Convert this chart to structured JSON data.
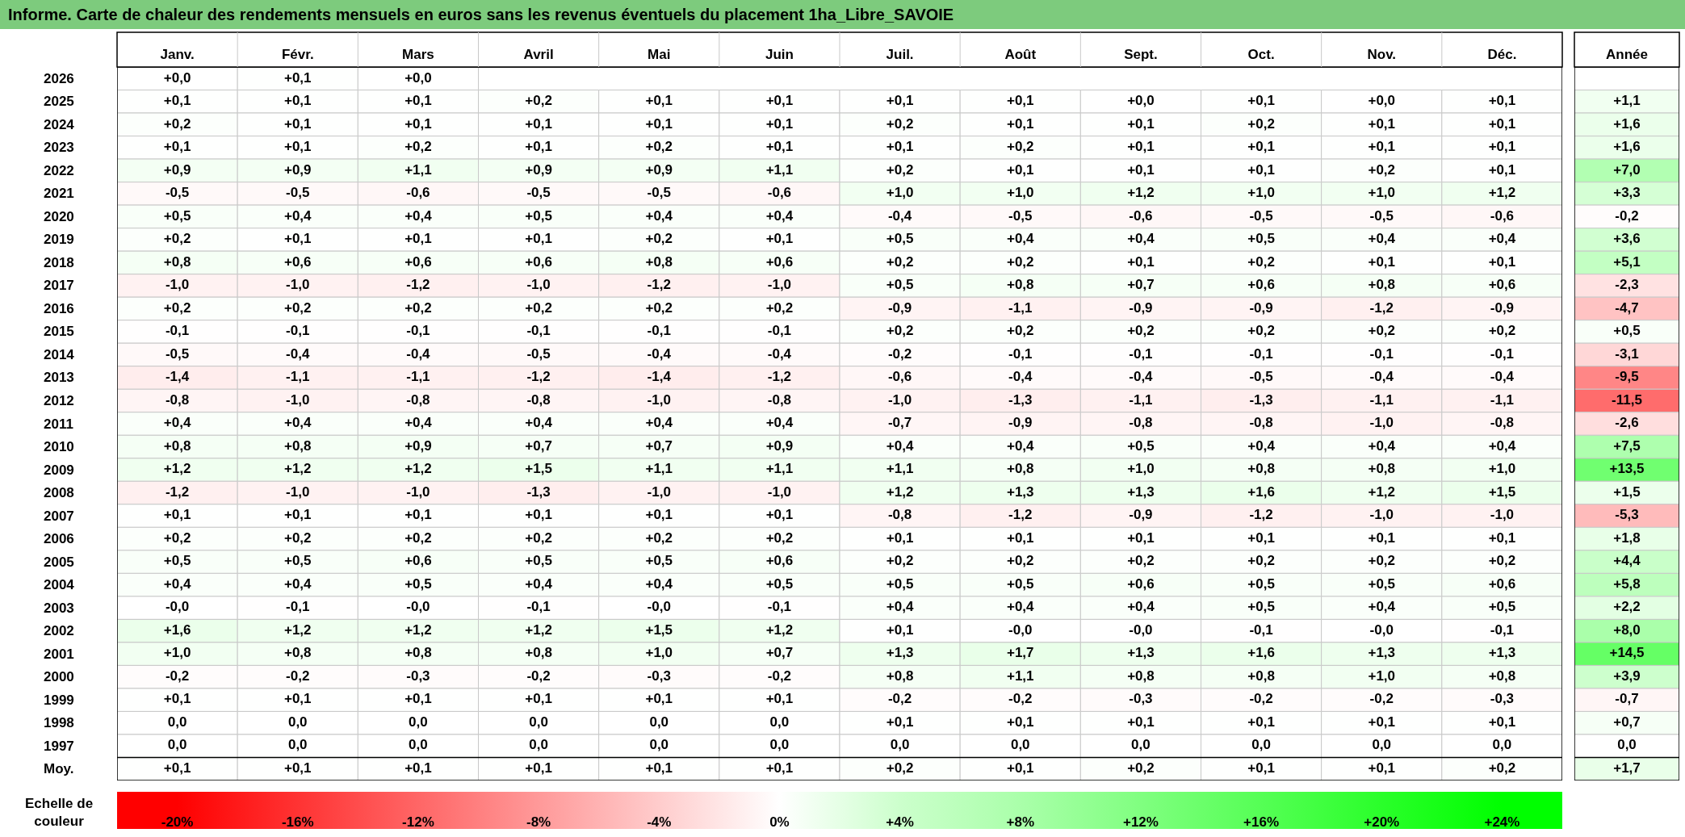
{
  "chart_data": [
    {
      "type": "heatmap",
      "title": "Informe. Carte de chaleur des rendements mensuels en euros sans les revenus éventuels du placement 1ha_Libre_SAVOIE",
      "categories": [
        "Janv.",
        "Févr.",
        "Mars",
        "Avril",
        "Mai",
        "Juin",
        "Juil.",
        "Août",
        "Sept.",
        "Oct.",
        "Nov.",
        "Déc."
      ],
      "y_categories": [
        "2026",
        "2025",
        "2024",
        "2023",
        "2022",
        "2021",
        "2020",
        "2019",
        "2018",
        "2017",
        "2016",
        "2015",
        "2014",
        "2013",
        "2012",
        "2011",
        "2010",
        "2009",
        "2008",
        "2007",
        "2006",
        "2005",
        "2004",
        "2003",
        "2002",
        "2001",
        "2000",
        "1999",
        "1998",
        "1997",
        "Moy."
      ],
      "cells": [
        [
          0.0,
          0.1,
          0.0,
          null,
          null,
          null,
          null,
          null,
          null,
          null,
          null,
          null
        ],
        [
          0.1,
          0.1,
          0.1,
          0.2,
          0.1,
          0.1,
          0.1,
          0.1,
          0.0,
          0.1,
          0.0,
          0.1
        ],
        [
          0.2,
          0.1,
          0.1,
          0.1,
          0.1,
          0.1,
          0.2,
          0.1,
          0.1,
          0.2,
          0.1,
          0.1
        ],
        [
          0.1,
          0.1,
          0.2,
          0.1,
          0.2,
          0.1,
          0.1,
          0.2,
          0.1,
          0.1,
          0.1,
          0.1
        ],
        [
          0.9,
          0.9,
          1.1,
          0.9,
          0.9,
          1.1,
          0.2,
          0.1,
          0.1,
          0.1,
          0.2,
          0.1
        ],
        [
          -0.5,
          -0.5,
          -0.6,
          -0.5,
          -0.5,
          -0.6,
          1.0,
          1.0,
          1.2,
          1.0,
          1.0,
          1.2
        ],
        [
          0.5,
          0.4,
          0.4,
          0.5,
          0.4,
          0.4,
          -0.4,
          -0.5,
          -0.6,
          -0.5,
          -0.5,
          -0.6
        ],
        [
          0.2,
          0.1,
          0.1,
          0.1,
          0.2,
          0.1,
          0.5,
          0.4,
          0.4,
          0.5,
          0.4,
          0.4
        ],
        [
          0.8,
          0.6,
          0.6,
          0.6,
          0.8,
          0.6,
          0.2,
          0.2,
          0.1,
          0.2,
          0.1,
          0.1
        ],
        [
          -1.0,
          -1.0,
          -1.2,
          -1.0,
          -1.2,
          -1.0,
          0.5,
          0.8,
          0.7,
          0.6,
          0.8,
          0.6
        ],
        [
          0.2,
          0.2,
          0.2,
          0.2,
          0.2,
          0.2,
          -0.9,
          -1.1,
          -0.9,
          -0.9,
          -1.2,
          -0.9
        ],
        [
          -0.1,
          -0.1,
          -0.1,
          -0.1,
          -0.1,
          -0.1,
          0.2,
          0.2,
          0.2,
          0.2,
          0.2,
          0.2
        ],
        [
          -0.5,
          -0.4,
          -0.4,
          -0.5,
          -0.4,
          -0.4,
          -0.2,
          -0.1,
          -0.1,
          -0.1,
          -0.1,
          -0.1
        ],
        [
          -1.4,
          -1.1,
          -1.1,
          -1.2,
          -1.4,
          -1.2,
          -0.6,
          -0.4,
          -0.4,
          -0.5,
          -0.4,
          -0.4
        ],
        [
          -0.8,
          -1.0,
          -0.8,
          -0.8,
          -1.0,
          -0.8,
          -1.0,
          -1.3,
          -1.1,
          -1.3,
          -1.1,
          -1.1
        ],
        [
          0.4,
          0.4,
          0.4,
          0.4,
          0.4,
          0.4,
          -0.7,
          -0.9,
          -0.8,
          -0.8,
          -1.0,
          -0.8
        ],
        [
          0.8,
          0.8,
          0.9,
          0.7,
          0.7,
          0.9,
          0.4,
          0.4,
          0.5,
          0.4,
          0.4,
          0.4
        ],
        [
          1.2,
          1.2,
          1.2,
          1.5,
          1.1,
          1.1,
          1.1,
          0.8,
          1.0,
          0.8,
          0.8,
          1.0
        ],
        [
          -1.2,
          -1.0,
          -1.0,
          -1.3,
          -1.0,
          -1.0,
          1.2,
          1.3,
          1.3,
          1.6,
          1.2,
          1.5
        ],
        [
          0.1,
          0.1,
          0.1,
          0.1,
          0.1,
          0.1,
          -0.8,
          -1.2,
          -0.9,
          -1.2,
          -1.0,
          -1.0
        ],
        [
          0.2,
          0.2,
          0.2,
          0.2,
          0.2,
          0.2,
          0.1,
          0.1,
          0.1,
          0.1,
          0.1,
          0.1
        ],
        [
          0.5,
          0.5,
          0.6,
          0.5,
          0.5,
          0.6,
          0.2,
          0.2,
          0.2,
          0.2,
          0.2,
          0.2
        ],
        [
          0.4,
          0.4,
          0.5,
          0.4,
          0.4,
          0.5,
          0.5,
          0.5,
          0.6,
          0.5,
          0.5,
          0.6
        ],
        [
          -0.0,
          -0.1,
          -0.0,
          -0.1,
          -0.0,
          -0.1,
          0.4,
          0.4,
          0.4,
          0.5,
          0.4,
          0.5
        ],
        [
          1.6,
          1.2,
          1.2,
          1.2,
          1.5,
          1.2,
          0.1,
          -0.0,
          -0.0,
          -0.1,
          -0.0,
          -0.1
        ],
        [
          1.0,
          0.8,
          0.8,
          0.8,
          1.0,
          0.7,
          1.3,
          1.7,
          1.3,
          1.6,
          1.3,
          1.3
        ],
        [
          -0.2,
          -0.2,
          -0.3,
          -0.2,
          -0.3,
          -0.2,
          0.8,
          1.1,
          0.8,
          0.8,
          1.0,
          0.8
        ],
        [
          0.1,
          0.1,
          0.1,
          0.1,
          0.1,
          0.1,
          -0.2,
          -0.2,
          -0.3,
          -0.2,
          -0.2,
          -0.3
        ],
        [
          0.0,
          0.0,
          0.0,
          0.0,
          0.0,
          0.0,
          0.1,
          0.1,
          0.1,
          0.1,
          0.1,
          0.1
        ],
        [
          0.0,
          0.0,
          0.0,
          0.0,
          0.0,
          0.0,
          0.0,
          0.0,
          0.0,
          0.0,
          0.0,
          0.0
        ],
        [
          0.1,
          0.1,
          0.1,
          0.1,
          0.1,
          0.1,
          0.2,
          0.1,
          0.2,
          0.1,
          0.1,
          0.2
        ]
      ],
      "cell_labels": [
        [
          "+0,0",
          "+0,1",
          "+0,0",
          null,
          null,
          null,
          null,
          null,
          null,
          null,
          null,
          null
        ],
        [
          "+0,1",
          "+0,1",
          "+0,1",
          "+0,2",
          "+0,1",
          "+0,1",
          "+0,1",
          "+0,1",
          "+0,0",
          "+0,1",
          "+0,0",
          "+0,1"
        ],
        [
          "+0,2",
          "+0,1",
          "+0,1",
          "+0,1",
          "+0,1",
          "+0,1",
          "+0,2",
          "+0,1",
          "+0,1",
          "+0,2",
          "+0,1",
          "+0,1"
        ],
        [
          "+0,1",
          "+0,1",
          "+0,2",
          "+0,1",
          "+0,2",
          "+0,1",
          "+0,1",
          "+0,2",
          "+0,1",
          "+0,1",
          "+0,1",
          "+0,1"
        ],
        [
          "+0,9",
          "+0,9",
          "+1,1",
          "+0,9",
          "+0,9",
          "+1,1",
          "+0,2",
          "+0,1",
          "+0,1",
          "+0,1",
          "+0,2",
          "+0,1"
        ],
        [
          "-0,5",
          "-0,5",
          "-0,6",
          "-0,5",
          "-0,5",
          "-0,6",
          "+1,0",
          "+1,0",
          "+1,2",
          "+1,0",
          "+1,0",
          "+1,2"
        ],
        [
          "+0,5",
          "+0,4",
          "+0,4",
          "+0,5",
          "+0,4",
          "+0,4",
          "-0,4",
          "-0,5",
          "-0,6",
          "-0,5",
          "-0,5",
          "-0,6"
        ],
        [
          "+0,2",
          "+0,1",
          "+0,1",
          "+0,1",
          "+0,2",
          "+0,1",
          "+0,5",
          "+0,4",
          "+0,4",
          "+0,5",
          "+0,4",
          "+0,4"
        ],
        [
          "+0,8",
          "+0,6",
          "+0,6",
          "+0,6",
          "+0,8",
          "+0,6",
          "+0,2",
          "+0,2",
          "+0,1",
          "+0,2",
          "+0,1",
          "+0,1"
        ],
        [
          "-1,0",
          "-1,0",
          "-1,2",
          "-1,0",
          "-1,2",
          "-1,0",
          "+0,5",
          "+0,8",
          "+0,7",
          "+0,6",
          "+0,8",
          "+0,6"
        ],
        [
          "+0,2",
          "+0,2",
          "+0,2",
          "+0,2",
          "+0,2",
          "+0,2",
          "-0,9",
          "-1,1",
          "-0,9",
          "-0,9",
          "-1,2",
          "-0,9"
        ],
        [
          "-0,1",
          "-0,1",
          "-0,1",
          "-0,1",
          "-0,1",
          "-0,1",
          "+0,2",
          "+0,2",
          "+0,2",
          "+0,2",
          "+0,2",
          "+0,2"
        ],
        [
          "-0,5",
          "-0,4",
          "-0,4",
          "-0,5",
          "-0,4",
          "-0,4",
          "-0,2",
          "-0,1",
          "-0,1",
          "-0,1",
          "-0,1",
          "-0,1"
        ],
        [
          "-1,4",
          "-1,1",
          "-1,1",
          "-1,2",
          "-1,4",
          "-1,2",
          "-0,6",
          "-0,4",
          "-0,4",
          "-0,5",
          "-0,4",
          "-0,4"
        ],
        [
          "-0,8",
          "-1,0",
          "-0,8",
          "-0,8",
          "-1,0",
          "-0,8",
          "-1,0",
          "-1,3",
          "-1,1",
          "-1,3",
          "-1,1",
          "-1,1"
        ],
        [
          "+0,4",
          "+0,4",
          "+0,4",
          "+0,4",
          "+0,4",
          "+0,4",
          "-0,7",
          "-0,9",
          "-0,8",
          "-0,8",
          "-1,0",
          "-0,8"
        ],
        [
          "+0,8",
          "+0,8",
          "+0,9",
          "+0,7",
          "+0,7",
          "+0,9",
          "+0,4",
          "+0,4",
          "+0,5",
          "+0,4",
          "+0,4",
          "+0,4"
        ],
        [
          "+1,2",
          "+1,2",
          "+1,2",
          "+1,5",
          "+1,1",
          "+1,1",
          "+1,1",
          "+0,8",
          "+1,0",
          "+0,8",
          "+0,8",
          "+1,0"
        ],
        [
          "-1,2",
          "-1,0",
          "-1,0",
          "-1,3",
          "-1,0",
          "-1,0",
          "+1,2",
          "+1,3",
          "+1,3",
          "+1,6",
          "+1,2",
          "+1,5"
        ],
        [
          "+0,1",
          "+0,1",
          "+0,1",
          "+0,1",
          "+0,1",
          "+0,1",
          "-0,8",
          "-1,2",
          "-0,9",
          "-1,2",
          "-1,0",
          "-1,0"
        ],
        [
          "+0,2",
          "+0,2",
          "+0,2",
          "+0,2",
          "+0,2",
          "+0,2",
          "+0,1",
          "+0,1",
          "+0,1",
          "+0,1",
          "+0,1",
          "+0,1"
        ],
        [
          "+0,5",
          "+0,5",
          "+0,6",
          "+0,5",
          "+0,5",
          "+0,6",
          "+0,2",
          "+0,2",
          "+0,2",
          "+0,2",
          "+0,2",
          "+0,2"
        ],
        [
          "+0,4",
          "+0,4",
          "+0,5",
          "+0,4",
          "+0,4",
          "+0,5",
          "+0,5",
          "+0,5",
          "+0,6",
          "+0,5",
          "+0,5",
          "+0,6"
        ],
        [
          "-0,0",
          "-0,1",
          "-0,0",
          "-0,1",
          "-0,0",
          "-0,1",
          "+0,4",
          "+0,4",
          "+0,4",
          "+0,5",
          "+0,4",
          "+0,5"
        ],
        [
          "+1,6",
          "+1,2",
          "+1,2",
          "+1,2",
          "+1,5",
          "+1,2",
          "+0,1",
          "-0,0",
          "-0,0",
          "-0,1",
          "-0,0",
          "-0,1"
        ],
        [
          "+1,0",
          "+0,8",
          "+0,8",
          "+0,8",
          "+1,0",
          "+0,7",
          "+1,3",
          "+1,7",
          "+1,3",
          "+1,6",
          "+1,3",
          "+1,3"
        ],
        [
          "-0,2",
          "-0,2",
          "-0,3",
          "-0,2",
          "-0,3",
          "-0,2",
          "+0,8",
          "+1,1",
          "+0,8",
          "+0,8",
          "+1,0",
          "+0,8"
        ],
        [
          "+0,1",
          "+0,1",
          "+0,1",
          "+0,1",
          "+0,1",
          "+0,1",
          "-0,2",
          "-0,2",
          "-0,3",
          "-0,2",
          "-0,2",
          "-0,3"
        ],
        [
          "0,0",
          "0,0",
          "0,0",
          "0,0",
          "0,0",
          "0,0",
          "+0,1",
          "+0,1",
          "+0,1",
          "+0,1",
          "+0,1",
          "+0,1"
        ],
        [
          "0,0",
          "0,0",
          "0,0",
          "0,0",
          "0,0",
          "0,0",
          "0,0",
          "0,0",
          "0,0",
          "0,0",
          "0,0",
          "0,0"
        ],
        [
          "+0,1",
          "+0,1",
          "+0,1",
          "+0,1",
          "+0,1",
          "+0,1",
          "+0,2",
          "+0,1",
          "+0,2",
          "+0,1",
          "+0,1",
          "+0,2"
        ]
      ],
      "clabel": "Echelle de couleur",
      "clim": [
        -20,
        24
      ],
      "cticks": [
        {
          "value": -20,
          "label": "-20%"
        },
        {
          "value": -16,
          "label": "-16%"
        },
        {
          "value": -12,
          "label": "-12%"
        },
        {
          "value": -8,
          "label": "-8%"
        },
        {
          "value": -4,
          "label": "-4%"
        },
        {
          "value": 0,
          "label": "0%"
        },
        {
          "value": 4,
          "label": "+4%"
        },
        {
          "value": 8,
          "label": "+8%"
        },
        {
          "value": 12,
          "label": "+12%"
        },
        {
          "value": 16,
          "label": "+16%"
        },
        {
          "value": 20,
          "label": "+20%"
        },
        {
          "value": 24,
          "label": "+24%"
        }
      ],
      "colors": [
        "#ff0000",
        "#ff3333",
        "#ff6666",
        "#ff9999",
        "#ffcccc",
        "#ffffff",
        "#ccffcc",
        "#aaffaa",
        "#80ff80",
        "#55ff55",
        "#2aff2a",
        "#00ff00"
      ],
      "grid": true
    },
    {
      "type": "heatmap",
      "categories": [
        "Année"
      ],
      "y_categories": [
        null,
        null,
        null,
        null,
        null,
        null,
        null,
        null,
        null,
        null,
        null,
        null,
        null,
        null,
        null,
        null,
        null,
        null,
        null,
        null,
        null,
        null,
        null,
        null,
        null,
        null,
        null,
        null,
        null,
        null
      ],
      "cells": [
        [
          1.1
        ],
        [
          1.6
        ],
        [
          1.6
        ],
        [
          7.0
        ],
        [
          3.3
        ],
        [
          -0.2
        ],
        [
          3.6
        ],
        [
          5.1
        ],
        [
          -2.3
        ],
        [
          -4.7
        ],
        [
          0.5
        ],
        [
          -3.1
        ],
        [
          -9.5
        ],
        [
          -11.5
        ],
        [
          -2.6
        ],
        [
          7.5
        ],
        [
          13.5
        ],
        [
          1.5
        ],
        [
          -5.3
        ],
        [
          1.8
        ],
        [
          4.4
        ],
        [
          5.8
        ],
        [
          2.2
        ],
        [
          8.0
        ],
        [
          14.5
        ],
        [
          3.9
        ],
        [
          -0.7
        ],
        [
          0.7
        ],
        [
          0.0
        ],
        [
          1.7
        ]
      ],
      "cell_labels": [
        [
          "+1,1"
        ],
        [
          "+1,6"
        ],
        [
          "+1,6"
        ],
        [
          "+7,0"
        ],
        [
          "+3,3"
        ],
        [
          "-0,2"
        ],
        [
          "+3,6"
        ],
        [
          "+5,1"
        ],
        [
          "-2,3"
        ],
        [
          "-4,7"
        ],
        [
          "+0,5"
        ],
        [
          "-3,1"
        ],
        [
          "-9,5"
        ],
        [
          "-11,5"
        ],
        [
          "-2,6"
        ],
        [
          "+7,5"
        ],
        [
          "+13,5"
        ],
        [
          "+1,5"
        ],
        [
          "-5,3"
        ],
        [
          "+1,8"
        ],
        [
          "+4,4"
        ],
        [
          "+5,8"
        ],
        [
          "+2,2"
        ],
        [
          "+8,0"
        ],
        [
          "+14,5"
        ],
        [
          "+3,9"
        ],
        [
          "-0,7"
        ],
        [
          "+0,7"
        ],
        [
          "0,0"
        ],
        [
          "+1,7"
        ]
      ],
      "grid": true,
      "tick_labels": "x"
    }
  ]
}
